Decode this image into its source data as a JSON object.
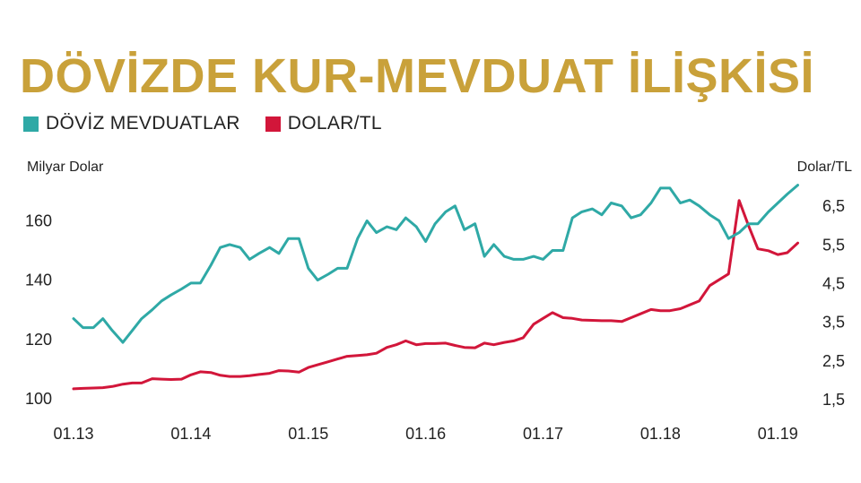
{
  "colors": {
    "title": "#c9a13a",
    "deposits": "#2fa9a6",
    "usdtry": "#d2163a",
    "text": "#222222",
    "grid": "#d9d9d9"
  },
  "chart_data": {
    "type": "line",
    "title": "DÖVİZDE KUR-MEVDUAT İLİŞKİSİ",
    "ylabel": "Milyar Dolar",
    "y2label": "Dolar/TL",
    "grid": false,
    "legend_position": "top-left",
    "xlim": [
      2013.0,
      2019.25
    ],
    "ylim": [
      97,
      174
    ],
    "y2lim": [
      1.29,
      7.2
    ],
    "x_ticks": [
      {
        "x": 2013,
        "label": "01.13"
      },
      {
        "x": 2014,
        "label": "01.14"
      },
      {
        "x": 2015,
        "label": "01.15"
      },
      {
        "x": 2016,
        "label": "01.16"
      },
      {
        "x": 2017,
        "label": "01.17"
      },
      {
        "x": 2018,
        "label": "01.18"
      },
      {
        "x": 2019,
        "label": "01.19"
      }
    ],
    "y_ticks": [
      {
        "v": 100,
        "label": "100"
      },
      {
        "v": 120,
        "label": "120"
      },
      {
        "v": 140,
        "label": "140"
      },
      {
        "v": 160,
        "label": "160"
      }
    ],
    "y2_ticks": [
      {
        "v": 1.5,
        "label": "1,5"
      },
      {
        "v": 2.5,
        "label": "2,5"
      },
      {
        "v": 3.5,
        "label": "3,5"
      },
      {
        "v": 4.5,
        "label": "4,5"
      },
      {
        "v": 5.5,
        "label": "5,5"
      },
      {
        "v": 6.5,
        "label": "6,5"
      }
    ],
    "series": [
      {
        "name": "DÖVİZ MEVDUATLAR",
        "axis": "left",
        "points": [
          [
            2013.0,
            127
          ],
          [
            2013.08,
            124
          ],
          [
            2013.17,
            124
          ],
          [
            2013.25,
            127
          ],
          [
            2013.33,
            123
          ],
          [
            2013.42,
            119
          ],
          [
            2013.5,
            123
          ],
          [
            2013.58,
            127
          ],
          [
            2013.67,
            130
          ],
          [
            2013.75,
            133
          ],
          [
            2013.83,
            135
          ],
          [
            2013.92,
            137
          ],
          [
            2014.0,
            139
          ],
          [
            2014.08,
            139
          ],
          [
            2014.17,
            145
          ],
          [
            2014.25,
            151
          ],
          [
            2014.33,
            152
          ],
          [
            2014.42,
            151
          ],
          [
            2014.5,
            147
          ],
          [
            2014.58,
            149
          ],
          [
            2014.67,
            151
          ],
          [
            2014.75,
            149
          ],
          [
            2014.83,
            154
          ],
          [
            2014.92,
            154
          ],
          [
            2015.0,
            144
          ],
          [
            2015.08,
            140
          ],
          [
            2015.17,
            142
          ],
          [
            2015.25,
            144
          ],
          [
            2015.33,
            144
          ],
          [
            2015.42,
            154
          ],
          [
            2015.5,
            160
          ],
          [
            2015.58,
            156
          ],
          [
            2015.67,
            158
          ],
          [
            2015.75,
            157
          ],
          [
            2015.83,
            161
          ],
          [
            2015.92,
            158
          ],
          [
            2016.0,
            153
          ],
          [
            2016.08,
            159
          ],
          [
            2016.17,
            163
          ],
          [
            2016.25,
            165
          ],
          [
            2016.33,
            157
          ],
          [
            2016.42,
            159
          ],
          [
            2016.5,
            148
          ],
          [
            2016.58,
            152
          ],
          [
            2016.67,
            148
          ],
          [
            2016.75,
            147
          ],
          [
            2016.83,
            147
          ],
          [
            2016.92,
            148
          ],
          [
            2017.0,
            147
          ],
          [
            2017.08,
            150
          ],
          [
            2017.17,
            150
          ],
          [
            2017.25,
            161
          ],
          [
            2017.33,
            163
          ],
          [
            2017.42,
            164
          ],
          [
            2017.5,
            162
          ],
          [
            2017.58,
            166
          ],
          [
            2017.67,
            165
          ],
          [
            2017.75,
            161
          ],
          [
            2017.83,
            162
          ],
          [
            2017.92,
            166
          ],
          [
            2018.0,
            171
          ],
          [
            2018.08,
            171
          ],
          [
            2018.17,
            166
          ],
          [
            2018.25,
            167
          ],
          [
            2018.33,
            165
          ],
          [
            2018.42,
            162
          ],
          [
            2018.5,
            160
          ],
          [
            2018.58,
            154
          ],
          [
            2018.67,
            156
          ],
          [
            2018.75,
            159
          ],
          [
            2018.83,
            159
          ],
          [
            2018.92,
            163
          ],
          [
            2019.0,
            166
          ],
          [
            2019.08,
            169
          ],
          [
            2019.17,
            172
          ]
        ]
      },
      {
        "name": "DOLAR/TL",
        "axis": "right",
        "points": [
          [
            2013.0,
            1.78
          ],
          [
            2013.08,
            1.79
          ],
          [
            2013.17,
            1.8
          ],
          [
            2013.25,
            1.81
          ],
          [
            2013.33,
            1.84
          ],
          [
            2013.42,
            1.9
          ],
          [
            2013.5,
            1.93
          ],
          [
            2013.58,
            1.93
          ],
          [
            2013.67,
            2.04
          ],
          [
            2013.75,
            2.03
          ],
          [
            2013.83,
            2.02
          ],
          [
            2013.92,
            2.03
          ],
          [
            2014.0,
            2.14
          ],
          [
            2014.08,
            2.22
          ],
          [
            2014.17,
            2.2
          ],
          [
            2014.25,
            2.13
          ],
          [
            2014.33,
            2.1
          ],
          [
            2014.42,
            2.1
          ],
          [
            2014.5,
            2.12
          ],
          [
            2014.58,
            2.15
          ],
          [
            2014.67,
            2.18
          ],
          [
            2014.75,
            2.25
          ],
          [
            2014.83,
            2.24
          ],
          [
            2014.92,
            2.21
          ],
          [
            2015.0,
            2.33
          ],
          [
            2015.08,
            2.4
          ],
          [
            2015.17,
            2.48
          ],
          [
            2015.25,
            2.55
          ],
          [
            2015.33,
            2.62
          ],
          [
            2015.42,
            2.64
          ],
          [
            2015.5,
            2.66
          ],
          [
            2015.58,
            2.7
          ],
          [
            2015.67,
            2.85
          ],
          [
            2015.75,
            2.92
          ],
          [
            2015.83,
            3.02
          ],
          [
            2015.92,
            2.92
          ],
          [
            2016.0,
            2.95
          ],
          [
            2016.08,
            2.95
          ],
          [
            2016.17,
            2.96
          ],
          [
            2016.25,
            2.9
          ],
          [
            2016.33,
            2.85
          ],
          [
            2016.42,
            2.84
          ],
          [
            2016.5,
            2.96
          ],
          [
            2016.58,
            2.92
          ],
          [
            2016.67,
            2.98
          ],
          [
            2016.75,
            3.02
          ],
          [
            2016.83,
            3.1
          ],
          [
            2016.92,
            3.45
          ],
          [
            2017.0,
            3.6
          ],
          [
            2017.08,
            3.75
          ],
          [
            2017.17,
            3.62
          ],
          [
            2017.25,
            3.6
          ],
          [
            2017.33,
            3.56
          ],
          [
            2017.42,
            3.55
          ],
          [
            2017.5,
            3.54
          ],
          [
            2017.58,
            3.54
          ],
          [
            2017.67,
            3.52
          ],
          [
            2017.75,
            3.62
          ],
          [
            2017.83,
            3.72
          ],
          [
            2017.92,
            3.83
          ],
          [
            2018.0,
            3.8
          ],
          [
            2018.08,
            3.8
          ],
          [
            2018.17,
            3.85
          ],
          [
            2018.25,
            3.95
          ],
          [
            2018.33,
            4.05
          ],
          [
            2018.42,
            4.45
          ],
          [
            2018.5,
            4.6
          ],
          [
            2018.58,
            4.75
          ],
          [
            2018.67,
            6.65
          ],
          [
            2018.75,
            6.0
          ],
          [
            2018.83,
            5.4
          ],
          [
            2018.92,
            5.35
          ],
          [
            2019.0,
            5.25
          ],
          [
            2019.08,
            5.3
          ],
          [
            2019.17,
            5.55
          ]
        ]
      }
    ]
  }
}
